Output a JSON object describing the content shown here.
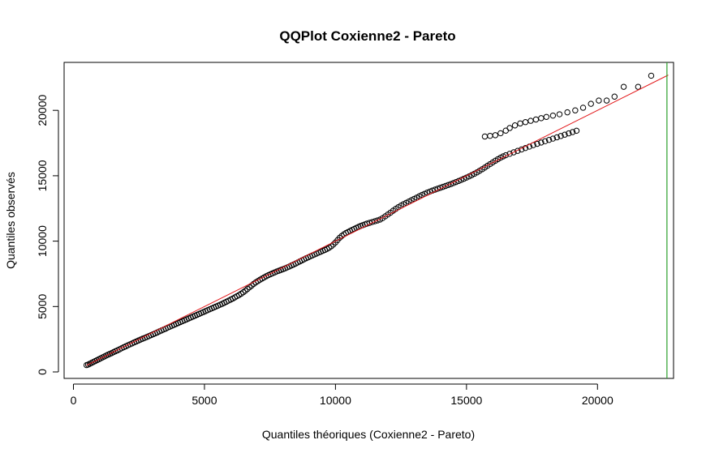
{
  "chart_data": {
    "type": "scatter",
    "title": "QQPlot Coxienne2 - Pareto",
    "xlabel": "Quantiles théoriques (Coxienne2 - Pareto)",
    "ylabel": "Quantiles observés",
    "xlim": [
      0,
      22900
    ],
    "ylim": [
      0,
      23200
    ],
    "x_ticks": [
      0,
      5000,
      10000,
      15000,
      20000
    ],
    "y_ticks": [
      0,
      5000,
      10000,
      15000,
      20000
    ],
    "x_tick_labels": [
      "0",
      "5000",
      "10000",
      "15000",
      "20000"
    ],
    "y_tick_labels": [
      "0",
      "5000",
      "10000",
      "15000",
      "20000"
    ],
    "grid": false,
    "colors": {
      "points": "#000000",
      "reference_line": "#e31a1c",
      "vertical_line": "#2ca02c",
      "frame": "#000000"
    },
    "reference_line": {
      "x": [
        500,
        22700
      ],
      "y": [
        500,
        22700
      ]
    },
    "vertical_line": {
      "x": 22650
    },
    "series": [
      {
        "marker": "open-circle",
        "points": [
          [
            500,
            520
          ],
          [
            560,
            560
          ],
          [
            620,
            620
          ],
          [
            690,
            690
          ],
          [
            760,
            760
          ],
          [
            830,
            830
          ],
          [
            900,
            900
          ],
          [
            970,
            970
          ],
          [
            1040,
            1040
          ],
          [
            1110,
            1110
          ],
          [
            1180,
            1180
          ],
          [
            1250,
            1250
          ],
          [
            1320,
            1320
          ],
          [
            1390,
            1380
          ],
          [
            1460,
            1440
          ],
          [
            1530,
            1510
          ],
          [
            1600,
            1580
          ],
          [
            1680,
            1650
          ],
          [
            1760,
            1730
          ],
          [
            1840,
            1810
          ],
          [
            1920,
            1890
          ],
          [
            2000,
            1960
          ],
          [
            2080,
            2040
          ],
          [
            2160,
            2110
          ],
          [
            2240,
            2180
          ],
          [
            2320,
            2260
          ],
          [
            2400,
            2330
          ],
          [
            2480,
            2400
          ],
          [
            2560,
            2470
          ],
          [
            2640,
            2540
          ],
          [
            2720,
            2600
          ],
          [
            2800,
            2670
          ],
          [
            2880,
            2740
          ],
          [
            2960,
            2810
          ],
          [
            3040,
            2880
          ],
          [
            3120,
            2950
          ],
          [
            3200,
            3020
          ],
          [
            3280,
            3100
          ],
          [
            3360,
            3170
          ],
          [
            3440,
            3240
          ],
          [
            3520,
            3310
          ],
          [
            3600,
            3390
          ],
          [
            3680,
            3460
          ],
          [
            3760,
            3530
          ],
          [
            3840,
            3600
          ],
          [
            3920,
            3670
          ],
          [
            4000,
            3740
          ],
          [
            4080,
            3810
          ],
          [
            4160,
            3880
          ],
          [
            4240,
            3950
          ],
          [
            4320,
            4020
          ],
          [
            4400,
            4090
          ],
          [
            4480,
            4160
          ],
          [
            4560,
            4230
          ],
          [
            4640,
            4300
          ],
          [
            4720,
            4370
          ],
          [
            4800,
            4440
          ],
          [
            4880,
            4510
          ],
          [
            4960,
            4580
          ],
          [
            5040,
            4650
          ],
          [
            5120,
            4720
          ],
          [
            5200,
            4790
          ],
          [
            5280,
            4860
          ],
          [
            5360,
            4930
          ],
          [
            5440,
            5000
          ],
          [
            5520,
            5070
          ],
          [
            5600,
            5140
          ],
          [
            5680,
            5210
          ],
          [
            5760,
            5290
          ],
          [
            5840,
            5370
          ],
          [
            5920,
            5450
          ],
          [
            6000,
            5530
          ],
          [
            6080,
            5610
          ],
          [
            6160,
            5700
          ],
          [
            6240,
            5790
          ],
          [
            6320,
            5880
          ],
          [
            6400,
            5980
          ],
          [
            6480,
            6090
          ],
          [
            6560,
            6210
          ],
          [
            6640,
            6340
          ],
          [
            6720,
            6470
          ],
          [
            6800,
            6600
          ],
          [
            6880,
            6730
          ],
          [
            6960,
            6850
          ],
          [
            7040,
            6950
          ],
          [
            7120,
            7050
          ],
          [
            7200,
            7140
          ],
          [
            7280,
            7230
          ],
          [
            7360,
            7320
          ],
          [
            7440,
            7400
          ],
          [
            7520,
            7470
          ],
          [
            7600,
            7540
          ],
          [
            7680,
            7610
          ],
          [
            7760,
            7680
          ],
          [
            7840,
            7740
          ],
          [
            7920,
            7800
          ],
          [
            8000,
            7860
          ],
          [
            8080,
            7920
          ],
          [
            8160,
            7990
          ],
          [
            8240,
            8060
          ],
          [
            8320,
            8140
          ],
          [
            8400,
            8210
          ],
          [
            8480,
            8290
          ],
          [
            8560,
            8370
          ],
          [
            8640,
            8450
          ],
          [
            8720,
            8530
          ],
          [
            8800,
            8610
          ],
          [
            8880,
            8690
          ],
          [
            8960,
            8760
          ],
          [
            9040,
            8840
          ],
          [
            9120,
            8910
          ],
          [
            9200,
            8980
          ],
          [
            9280,
            9050
          ],
          [
            9360,
            9120
          ],
          [
            9440,
            9190
          ],
          [
            9520,
            9260
          ],
          [
            9600,
            9330
          ],
          [
            9680,
            9410
          ],
          [
            9760,
            9500
          ],
          [
            9840,
            9610
          ],
          [
            9920,
            9740
          ],
          [
            10000,
            9900
          ],
          [
            10080,
            10080
          ],
          [
            10160,
            10260
          ],
          [
            10240,
            10400
          ],
          [
            10320,
            10520
          ],
          [
            10400,
            10620
          ],
          [
            10480,
            10700
          ],
          [
            10560,
            10780
          ],
          [
            10640,
            10860
          ],
          [
            10720,
            10940
          ],
          [
            10800,
            11020
          ],
          [
            10880,
            11090
          ],
          [
            10960,
            11160
          ],
          [
            11040,
            11220
          ],
          [
            11120,
            11280
          ],
          [
            11200,
            11340
          ],
          [
            11300,
            11400
          ],
          [
            11400,
            11460
          ],
          [
            11500,
            11520
          ],
          [
            11600,
            11580
          ],
          [
            11700,
            11650
          ],
          [
            11800,
            11760
          ],
          [
            11900,
            11900
          ],
          [
            12000,
            12040
          ],
          [
            12100,
            12180
          ],
          [
            12200,
            12330
          ],
          [
            12300,
            12470
          ],
          [
            12400,
            12600
          ],
          [
            12500,
            12720
          ],
          [
            12600,
            12830
          ],
          [
            12700,
            12930
          ],
          [
            12800,
            13030
          ],
          [
            12900,
            13130
          ],
          [
            13000,
            13230
          ],
          [
            13100,
            13330
          ],
          [
            13200,
            13430
          ],
          [
            13300,
            13530
          ],
          [
            13400,
            13620
          ],
          [
            13500,
            13710
          ],
          [
            13600,
            13790
          ],
          [
            13700,
            13870
          ],
          [
            13800,
            13940
          ],
          [
            13900,
            14010
          ],
          [
            14000,
            14080
          ],
          [
            14100,
            14150
          ],
          [
            14200,
            14220
          ],
          [
            14300,
            14290
          ],
          [
            14400,
            14360
          ],
          [
            14500,
            14440
          ],
          [
            14600,
            14520
          ],
          [
            14700,
            14600
          ],
          [
            14800,
            14680
          ],
          [
            14900,
            14770
          ],
          [
            15000,
            14860
          ],
          [
            15100,
            14950
          ],
          [
            15200,
            15050
          ],
          [
            15300,
            15150
          ],
          [
            15400,
            15260
          ],
          [
            15500,
            15380
          ],
          [
            15600,
            15500
          ],
          [
            15700,
            15630
          ],
          [
            15800,
            15760
          ],
          [
            15900,
            15890
          ],
          [
            16000,
            16020
          ],
          [
            16100,
            16150
          ],
          [
            16200,
            16270
          ],
          [
            16300,
            16380
          ],
          [
            16400,
            16480
          ],
          [
            16500,
            16570
          ],
          [
            16650,
            16680
          ],
          [
            16800,
            16790
          ],
          [
            16950,
            16900
          ],
          [
            17100,
            17010
          ],
          [
            17250,
            17120
          ],
          [
            17400,
            17230
          ],
          [
            17550,
            17340
          ],
          [
            17700,
            17440
          ],
          [
            17850,
            17540
          ],
          [
            18000,
            17640
          ],
          [
            18150,
            17740
          ],
          [
            18300,
            17840
          ],
          [
            18450,
            17940
          ],
          [
            18600,
            18040
          ],
          [
            18750,
            18140
          ],
          [
            18900,
            18240
          ],
          [
            19050,
            18340
          ],
          [
            19200,
            18440
          ],
          [
            15700,
            18000
          ],
          [
            15900,
            18050
          ],
          [
            16100,
            18100
          ],
          [
            16300,
            18250
          ],
          [
            16500,
            18450
          ],
          [
            16650,
            18650
          ],
          [
            16850,
            18850
          ],
          [
            17050,
            19000
          ],
          [
            17250,
            19100
          ],
          [
            17450,
            19200
          ],
          [
            17650,
            19300
          ],
          [
            17850,
            19400
          ],
          [
            18050,
            19500
          ],
          [
            18300,
            19600
          ],
          [
            18550,
            19700
          ],
          [
            18850,
            19850
          ],
          [
            19150,
            20000
          ],
          [
            19450,
            20200
          ],
          [
            19750,
            20500
          ],
          [
            20050,
            20750
          ],
          [
            20350,
            20750
          ],
          [
            20650,
            21050
          ],
          [
            21000,
            21800
          ],
          [
            21550,
            21800
          ],
          [
            22050,
            22650
          ]
        ]
      }
    ]
  }
}
